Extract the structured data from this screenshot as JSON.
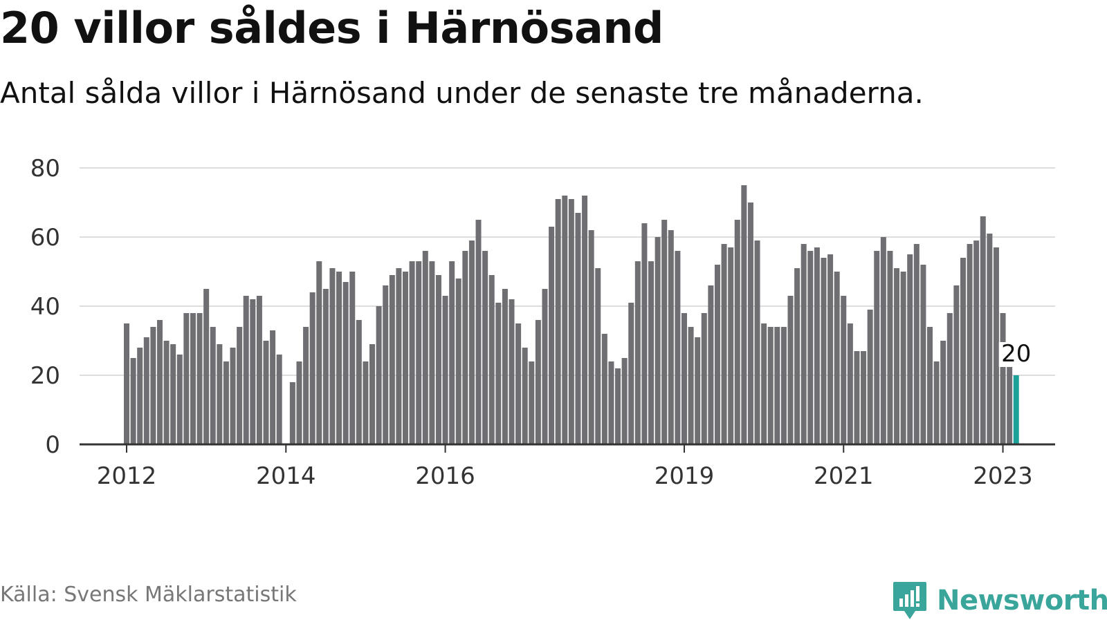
{
  "title": "20 villor såldes i Härnösand",
  "subtitle": "Antal sålda villor i Härnösand under de senaste tre månaderna.",
  "source": "Källa: Svensk Mäklarstatistik",
  "brand": "Newsworthy",
  "colors": {
    "bar": "#6e6e73",
    "highlight": "#1aa198",
    "grid": "#dddddd",
    "axis": "#333333",
    "brand": "#3aa59b"
  },
  "chart_data": {
    "type": "bar",
    "ylim": [
      0,
      80
    ],
    "y_ticks": [
      0,
      20,
      40,
      60,
      80
    ],
    "x_tick_labels": [
      "2012",
      "2014",
      "2016",
      "2019",
      "2021",
      "2023"
    ],
    "x_tick_index": [
      0,
      24,
      48,
      84,
      108,
      132
    ],
    "highlight_label": "20",
    "values": [
      35,
      25,
      28,
      31,
      34,
      36,
      30,
      29,
      26,
      38,
      38,
      38,
      45,
      34,
      29,
      24,
      28,
      34,
      43,
      42,
      43,
      30,
      33,
      26,
      null,
      18,
      24,
      34,
      44,
      53,
      45,
      51,
      50,
      47,
      50,
      36,
      24,
      29,
      40,
      46,
      49,
      51,
      50,
      53,
      53,
      56,
      53,
      49,
      43,
      53,
      48,
      56,
      59,
      65,
      56,
      49,
      41,
      45,
      42,
      35,
      28,
      24,
      36,
      45,
      63,
      71,
      72,
      71,
      67,
      72,
      62,
      51,
      32,
      24,
      22,
      25,
      41,
      53,
      64,
      53,
      60,
      65,
      62,
      56,
      38,
      34,
      31,
      38,
      46,
      52,
      58,
      57,
      65,
      75,
      70,
      59,
      35,
      34,
      34,
      34,
      43,
      51,
      58,
      56,
      57,
      54,
      55,
      50,
      43,
      35,
      27,
      27,
      39,
      56,
      60,
      56,
      51,
      50,
      55,
      58,
      52,
      34,
      24,
      30,
      38,
      46,
      54,
      58,
      59,
      66,
      61,
      57,
      38,
      23,
      20
    ]
  }
}
